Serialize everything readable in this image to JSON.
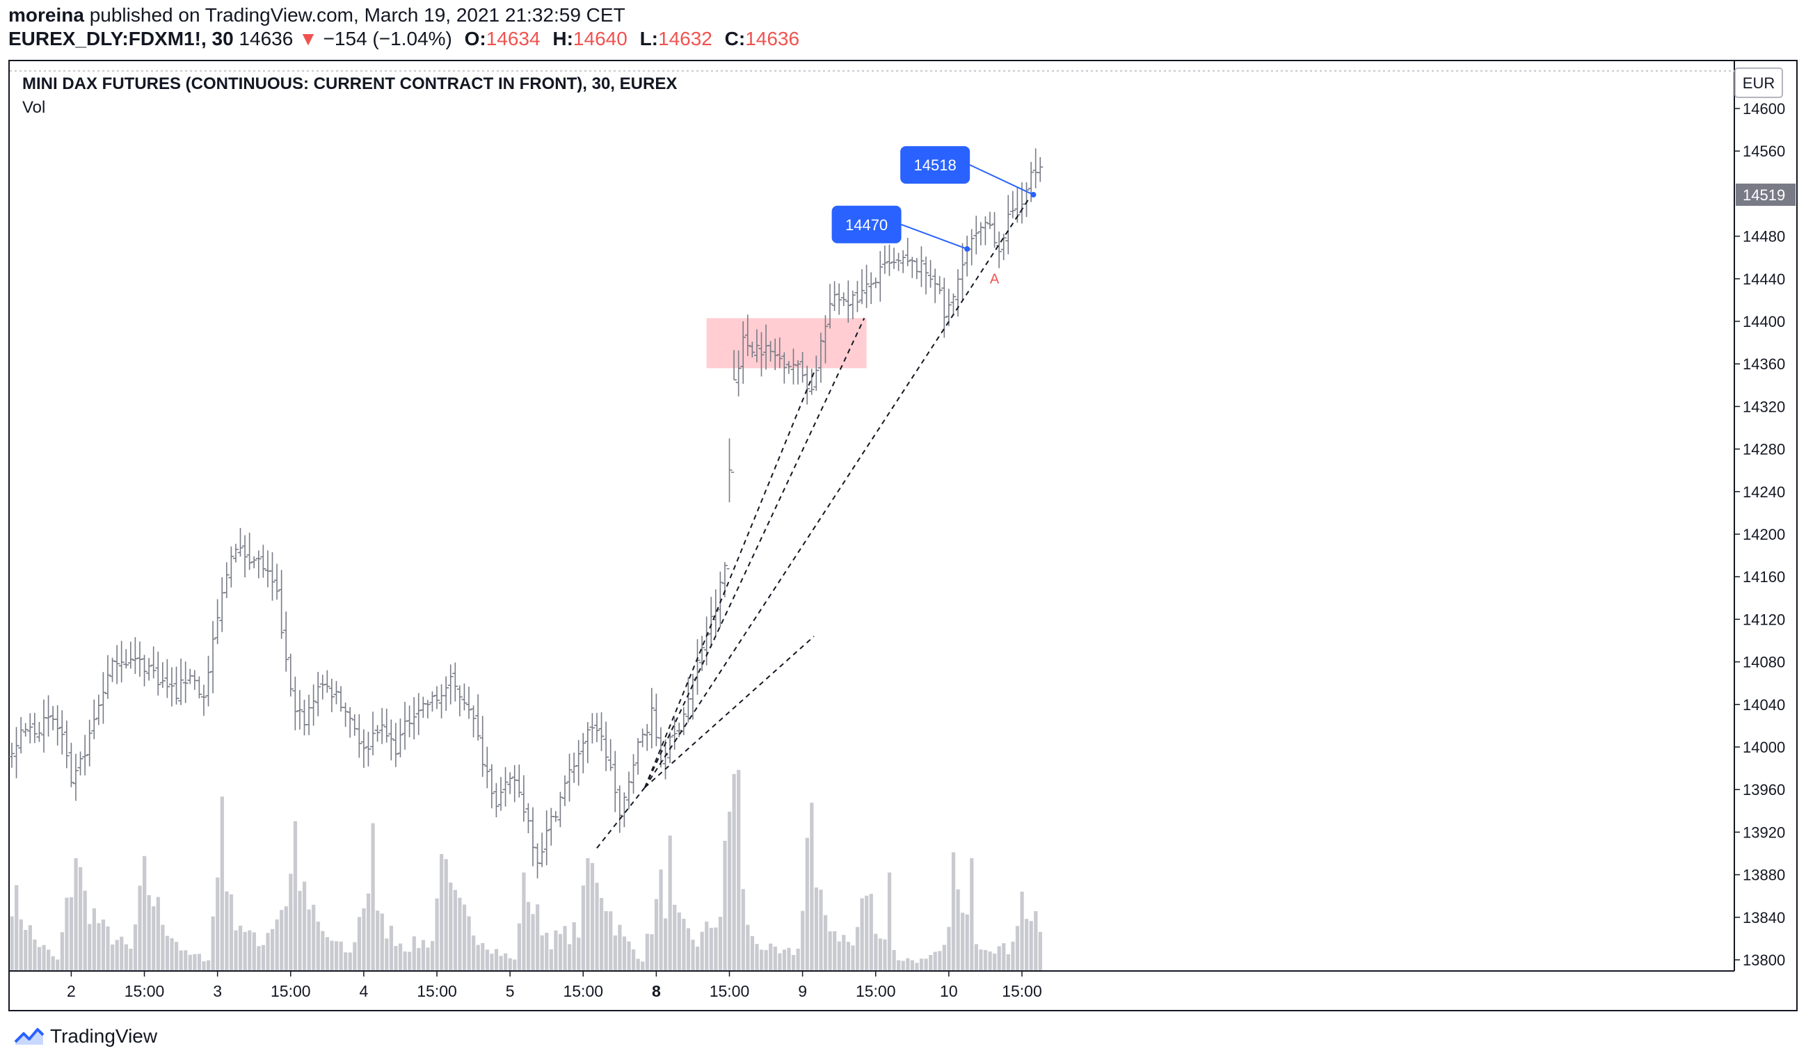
{
  "header": {
    "publisher": "moreina",
    "published_text": "published on TradingView.com, March 19, 2021 21:32:59 CET",
    "symbol": "EUREX_DLY:FDXM1!, 30",
    "last": "14636",
    "change_arrow": "▼",
    "change": "−154 (−1.04%)",
    "o_label": "O:",
    "o_value": "14634",
    "h_label": "H:",
    "h_value": "14640",
    "l_label": "L:",
    "l_value": "14632",
    "c_label": "C:",
    "c_value": "14636"
  },
  "legend": {
    "title": "MINI DAX FUTURES (CONTINUOUS: CURRENT CONTRACT IN FRONT), 30, EUREX",
    "volume_label": "Vol"
  },
  "currency_badge": "EUR",
  "price_marker": "14519",
  "footer": {
    "brand": "TradingView"
  },
  "colors": {
    "bar": "#787b86",
    "volume": "#c9cad0",
    "zone": "#ffcdd2",
    "label_blue": "#2962ff",
    "red": "#ef5350",
    "price_tag": "#787b86"
  },
  "chart_data": {
    "type": "ohlc",
    "title": "MINI DAX FUTURES (CONTINUOUS: CURRENT CONTRACT IN FRONT), 30, EUREX",
    "ylim": [
      13782,
      14636
    ],
    "y_ticks": [
      13800,
      13840,
      13880,
      13920,
      13960,
      14000,
      14040,
      14080,
      14120,
      14160,
      14200,
      14240,
      14280,
      14320,
      14360,
      14400,
      14440,
      14480,
      14520,
      14560,
      14600
    ],
    "x_tick_labels": [
      "2",
      "15:00",
      "3",
      "15:00",
      "4",
      "15:00",
      "5",
      "15:00",
      "8",
      "15:00",
      "9",
      "15:00",
      "10",
      "15:00"
    ],
    "x_tick_bold": [
      false,
      false,
      false,
      false,
      false,
      false,
      false,
      false,
      true,
      false,
      false,
      false,
      false,
      false
    ],
    "x_tick_bars": [
      13,
      29,
      45,
      61,
      77,
      93,
      109,
      125,
      141,
      157,
      173,
      189,
      205,
      221
    ],
    "bar_count": 226,
    "day_anchors": [
      {
        "bar": 0,
        "price": 13990
      },
      {
        "bar": 1,
        "price": 14005
      },
      {
        "bar": 3,
        "price": 14015
      },
      {
        "bar": 6,
        "price": 14020
      },
      {
        "bar": 9,
        "price": 14025
      },
      {
        "bar": 11,
        "price": 14010
      },
      {
        "bar": 13,
        "price": 13960
      },
      {
        "bar": 17,
        "price": 14010
      },
      {
        "bar": 20,
        "price": 14055
      },
      {
        "bar": 23,
        "price": 14085
      },
      {
        "bar": 27,
        "price": 14080
      },
      {
        "bar": 30,
        "price": 14075
      },
      {
        "bar": 33,
        "price": 14060
      },
      {
        "bar": 36,
        "price": 14050
      },
      {
        "bar": 39,
        "price": 14070
      },
      {
        "bar": 42,
        "price": 14045
      },
      {
        "bar": 45,
        "price": 14120
      },
      {
        "bar": 48,
        "price": 14185
      },
      {
        "bar": 52,
        "price": 14180
      },
      {
        "bar": 55,
        "price": 14170
      },
      {
        "bar": 58,
        "price": 14140
      },
      {
        "bar": 61,
        "price": 14050
      },
      {
        "bar": 64,
        "price": 14020
      },
      {
        "bar": 67,
        "price": 14060
      },
      {
        "bar": 71,
        "price": 14050
      },
      {
        "bar": 75,
        "price": 14020
      },
      {
        "bar": 77,
        "price": 13995
      },
      {
        "bar": 80,
        "price": 14020
      },
      {
        "bar": 84,
        "price": 14000
      },
      {
        "bar": 88,
        "price": 14035
      },
      {
        "bar": 93,
        "price": 14045
      },
      {
        "bar": 96,
        "price": 14060
      },
      {
        "bar": 100,
        "price": 14040
      },
      {
        "bar": 103,
        "price": 13990
      },
      {
        "bar": 106,
        "price": 13950
      },
      {
        "bar": 110,
        "price": 13970
      },
      {
        "bar": 113,
        "price": 13930
      },
      {
        "bar": 115,
        "price": 13895
      },
      {
        "bar": 118,
        "price": 13930
      },
      {
        "bar": 122,
        "price": 13975
      },
      {
        "bar": 125,
        "price": 14005
      },
      {
        "bar": 128,
        "price": 14020
      },
      {
        "bar": 131,
        "price": 13980
      },
      {
        "bar": 133,
        "price": 13930
      },
      {
        "bar": 136,
        "price": 13990
      },
      {
        "bar": 140,
        "price": 14030
      },
      {
        "bar": 142,
        "price": 13990
      },
      {
        "bar": 145,
        "price": 14010
      },
      {
        "bar": 148,
        "price": 14045
      },
      {
        "bar": 151,
        "price": 14095
      },
      {
        "bar": 154,
        "price": 14130
      },
      {
        "bar": 156,
        "price": 14170
      },
      {
        "bar": 157,
        "price": 14260
      },
      {
        "bar": 158,
        "price": 14345
      },
      {
        "bar": 160,
        "price": 14380
      },
      {
        "bar": 164,
        "price": 14375
      },
      {
        "bar": 168,
        "price": 14365
      },
      {
        "bar": 171,
        "price": 14360
      },
      {
        "bar": 173,
        "price": 14350
      },
      {
        "bar": 175,
        "price": 14335
      },
      {
        "bar": 177,
        "price": 14380
      },
      {
        "bar": 180,
        "price": 14425
      },
      {
        "bar": 184,
        "price": 14420
      },
      {
        "bar": 187,
        "price": 14430
      },
      {
        "bar": 191,
        "price": 14450
      },
      {
        "bar": 195,
        "price": 14455
      },
      {
        "bar": 199,
        "price": 14450
      },
      {
        "bar": 202,
        "price": 14440
      },
      {
        "bar": 204,
        "price": 14405
      },
      {
        "bar": 206,
        "price": 14420
      },
      {
        "bar": 208,
        "price": 14460
      },
      {
        "bar": 211,
        "price": 14480
      },
      {
        "bar": 214,
        "price": 14490
      },
      {
        "bar": 216,
        "price": 14470
      },
      {
        "bar": 218,
        "price": 14495
      },
      {
        "bar": 220,
        "price": 14500
      },
      {
        "bar": 222,
        "price": 14530
      },
      {
        "bar": 225,
        "price": 14545
      }
    ],
    "volume_profile": [
      {
        "bar": 0,
        "v": 0.38
      },
      {
        "bar": 5,
        "v": 0.15
      },
      {
        "bar": 10,
        "v": 0.05
      },
      {
        "bar": 14,
        "v": 0.55
      },
      {
        "bar": 16,
        "v": 0.35
      },
      {
        "bar": 20,
        "v": 0.2
      },
      {
        "bar": 26,
        "v": 0.1
      },
      {
        "bar": 29,
        "v": 0.45
      },
      {
        "bar": 33,
        "v": 0.25
      },
      {
        "bar": 38,
        "v": 0.08
      },
      {
        "bar": 43,
        "v": 0.06
      },
      {
        "bar": 46,
        "v": 0.65
      },
      {
        "bar": 48,
        "v": 0.3
      },
      {
        "bar": 54,
        "v": 0.12
      },
      {
        "bar": 60,
        "v": 0.35
      },
      {
        "bar": 62,
        "v": 0.58
      },
      {
        "bar": 64,
        "v": 0.35
      },
      {
        "bar": 68,
        "v": 0.18
      },
      {
        "bar": 74,
        "v": 0.08
      },
      {
        "bar": 78,
        "v": 0.42
      },
      {
        "bar": 80,
        "v": 0.25
      },
      {
        "bar": 86,
        "v": 0.12
      },
      {
        "bar": 92,
        "v": 0.15
      },
      {
        "bar": 94,
        "v": 0.52
      },
      {
        "bar": 96,
        "v": 0.35
      },
      {
        "bar": 101,
        "v": 0.2
      },
      {
        "bar": 106,
        "v": 0.1
      },
      {
        "bar": 110,
        "v": 0.05
      },
      {
        "bar": 112,
        "v": 0.5
      },
      {
        "bar": 114,
        "v": 0.3
      },
      {
        "bar": 118,
        "v": 0.15
      },
      {
        "bar": 124,
        "v": 0.2
      },
      {
        "bar": 126,
        "v": 0.45
      },
      {
        "bar": 128,
        "v": 0.5
      },
      {
        "bar": 131,
        "v": 0.28
      },
      {
        "bar": 134,
        "v": 0.15
      },
      {
        "bar": 138,
        "v": 0.06
      },
      {
        "bar": 142,
        "v": 0.4
      },
      {
        "bar": 146,
        "v": 0.22
      },
      {
        "bar": 150,
        "v": 0.14
      },
      {
        "bar": 155,
        "v": 0.28
      },
      {
        "bar": 157,
        "v": 0.75
      },
      {
        "bar": 159,
        "v": 0.45
      },
      {
        "bar": 162,
        "v": 0.15
      },
      {
        "bar": 168,
        "v": 0.08
      },
      {
        "bar": 172,
        "v": 0.1
      },
      {
        "bar": 174,
        "v": 0.65
      },
      {
        "bar": 176,
        "v": 0.35
      },
      {
        "bar": 180,
        "v": 0.2
      },
      {
        "bar": 184,
        "v": 0.12
      },
      {
        "bar": 187,
        "v": 0.4
      },
      {
        "bar": 190,
        "v": 0.18
      },
      {
        "bar": 194,
        "v": 0.06
      },
      {
        "bar": 200,
        "v": 0.05
      },
      {
        "bar": 204,
        "v": 0.1
      },
      {
        "bar": 206,
        "v": 0.5
      },
      {
        "bar": 208,
        "v": 0.25
      },
      {
        "bar": 212,
        "v": 0.14
      },
      {
        "bar": 218,
        "v": 0.1
      },
      {
        "bar": 221,
        "v": 0.35
      },
      {
        "bar": 223,
        "v": 0.25
      },
      {
        "bar": 225,
        "v": 0.2
      }
    ],
    "volume_spikes": [
      {
        "bar": 14,
        "v": 0.55
      },
      {
        "bar": 46,
        "v": 0.85
      },
      {
        "bar": 62,
        "v": 0.73
      },
      {
        "bar": 79,
        "v": 0.72
      },
      {
        "bar": 94,
        "v": 0.57
      },
      {
        "bar": 112,
        "v": 0.48
      },
      {
        "bar": 126,
        "v": 0.55
      },
      {
        "bar": 144,
        "v": 0.66
      },
      {
        "bar": 158,
        "v": 0.96
      },
      {
        "bar": 159,
        "v": 0.98
      },
      {
        "bar": 175,
        "v": 0.82
      },
      {
        "bar": 192,
        "v": 0.48
      },
      {
        "bar": 210,
        "v": 0.55
      }
    ],
    "overlays": {
      "zone": {
        "bar_start": 152,
        "bar_end": 187,
        "price_low": 14356,
        "price_high": 14403
      },
      "fan_lines": [
        {
          "from_bar": 138.5,
          "from_price": 13962,
          "to_bar": 175.5,
          "to_price": 14352
        },
        {
          "from_bar": 138.5,
          "from_price": 13962,
          "to_bar": 186.5,
          "to_price": 14403
        },
        {
          "from_bar": 138.5,
          "from_price": 13962,
          "to_bar": 222.5,
          "to_price": 14515
        },
        {
          "from_bar": 138.5,
          "from_price": 13962,
          "to_bar": 175.5,
          "to_price": 14104
        },
        {
          "from_bar": 128,
          "from_price": 13905,
          "to_bar": 138.5,
          "to_price": 13962
        }
      ],
      "callouts": [
        {
          "text": "14470",
          "anchor_bar": 209,
          "anchor_price": 14468,
          "label_bar": 187,
          "label_price": 14491
        },
        {
          "text": "14518",
          "anchor_bar": 223.5,
          "anchor_price": 14519,
          "label_bar": 202,
          "label_price": 14547
        }
      ],
      "marker_a": {
        "text": "A",
        "bar": 215,
        "price": 14441
      }
    }
  }
}
